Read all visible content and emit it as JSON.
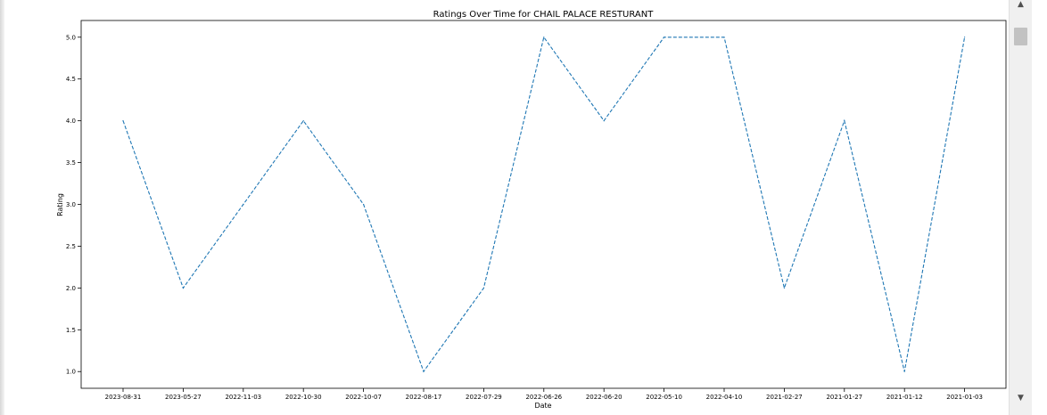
{
  "chart_data": {
    "type": "line",
    "title": "Ratings Over Time for CHAIL PALACE RESTURANT",
    "xlabel": "Date",
    "ylabel": "Rating",
    "categories": [
      "2023-08-31",
      "2023-05-27",
      "2022-11-03",
      "2022-10-30",
      "2022-10-07",
      "2022-08-17",
      "2022-07-29",
      "2022-06-26",
      "2022-06-20",
      "2022-05-10",
      "2022-04-10",
      "2021-02-27",
      "2021-01-27",
      "2021-01-12",
      "2021-01-03"
    ],
    "series": [
      {
        "values": [
          4,
          2,
          3,
          4,
          3,
          1,
          2,
          5,
          4,
          5,
          5,
          2,
          4,
          1,
          5
        ],
        "color": "#1f77b4",
        "line_style": "dashed"
      }
    ],
    "yticks": [
      "1.0",
      "1.5",
      "2.0",
      "2.5",
      "3.0",
      "3.5",
      "4.0",
      "4.5",
      "5.0"
    ],
    "ylim": [
      0.8,
      5.2
    ],
    "grid": false,
    "legend": "none"
  },
  "scrollbar": {
    "up_arrow": "▲",
    "down_arrow": "▼"
  }
}
